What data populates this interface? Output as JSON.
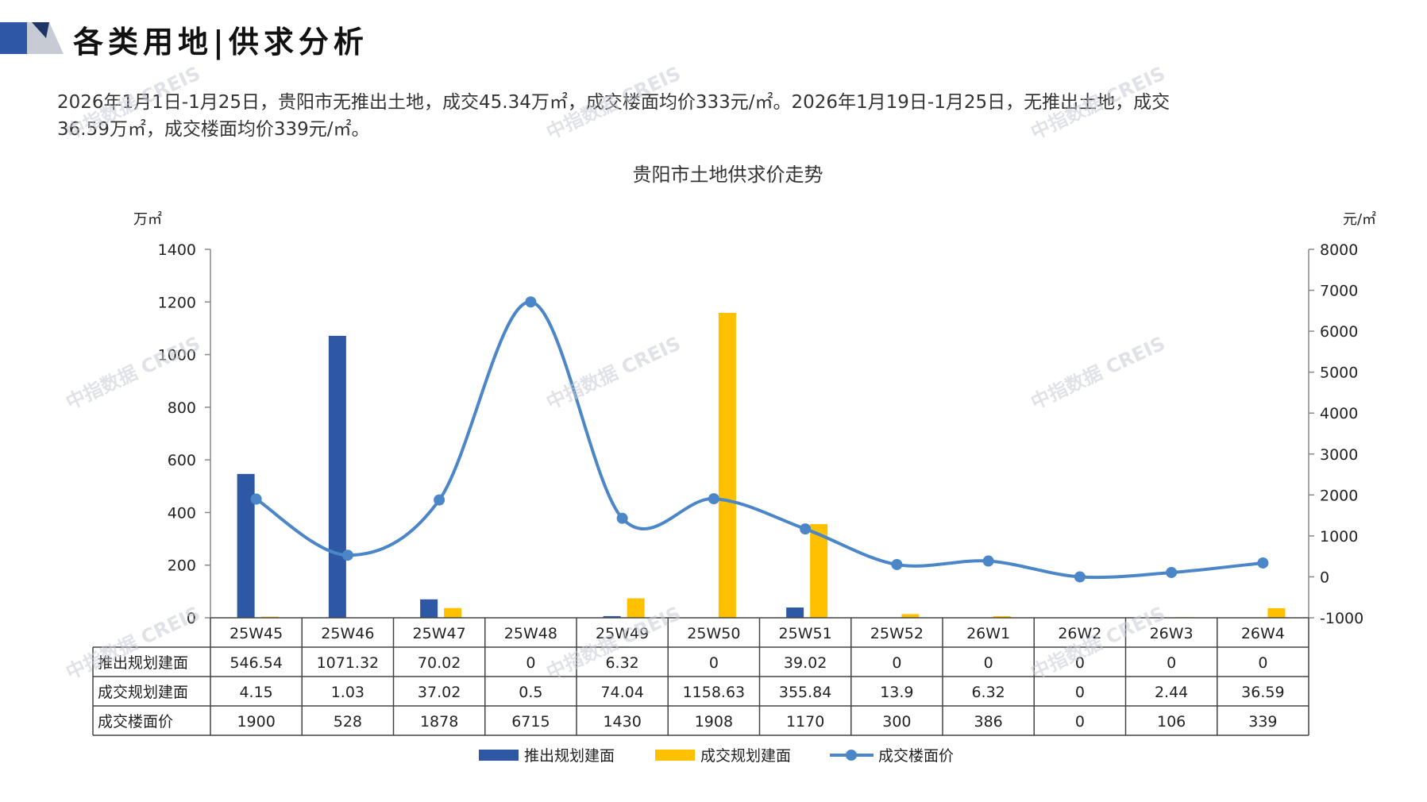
{
  "page": {
    "title": "各类用地|供求分析",
    "summary_line1": "2026年1月1日-1月25日，贵阳市无推出土地，成交45.34万㎡，成交楼面均价333元/㎡。2026年1月19日-1月25日，无推出土地，成交",
    "summary_line2": "36.59万㎡，成交楼面均价339元/㎡。",
    "watermark": "中指数据 CREIS"
  },
  "colors": {
    "supply": "#2E58A6",
    "deal": "#FFC000",
    "price": "#4A86C8",
    "grid": "#444444"
  },
  "chart_data": {
    "type": "bar",
    "title": "贵阳市土地供求价走势",
    "ylabel_left": "万㎡",
    "ylabel_right": "元/㎡",
    "ylim_left": [
      0,
      1400
    ],
    "yticks_left": [
      "0",
      "200",
      "400",
      "600",
      "800",
      "1000",
      "1200",
      "1400"
    ],
    "ylim_right": [
      -1000,
      8000
    ],
    "yticks_right": [
      "-1000",
      "0",
      "1000",
      "2000",
      "3000",
      "4000",
      "5000",
      "6000",
      "7000",
      "8000"
    ],
    "categories": [
      "25W45",
      "25W46",
      "25W47",
      "25W48",
      "25W49",
      "25W50",
      "25W51",
      "25W52",
      "26W1",
      "26W2",
      "26W3",
      "26W4"
    ],
    "series": [
      {
        "name": "推出规划建面",
        "type": "bar",
        "axis": "left",
        "values": [
          546.54,
          1071.32,
          70.02,
          0,
          6.32,
          0,
          39.02,
          0,
          0,
          0,
          0,
          0
        ],
        "labels": [
          "546.54",
          "1071.32",
          "70.02",
          "0",
          "6.32",
          "0",
          "39.02",
          "0",
          "0",
          "0",
          "0",
          "0"
        ]
      },
      {
        "name": "成交规划建面",
        "type": "bar",
        "axis": "left",
        "values": [
          4.15,
          1.03,
          37.02,
          0.5,
          74.04,
          1158.63,
          355.84,
          13.9,
          6.32,
          0,
          2.44,
          36.59
        ],
        "labels": [
          "4.15",
          "1.03",
          "37.02",
          "0.5",
          "74.04",
          "1158.63",
          "355.84",
          "13.9",
          "6.32",
          "0",
          "2.44",
          "36.59"
        ]
      },
      {
        "name": "成交楼面价",
        "type": "line",
        "axis": "right",
        "values": [
          1900,
          528,
          1878,
          6715,
          1430,
          1908,
          1170,
          300,
          386,
          0,
          106,
          339
        ],
        "labels": [
          "1900",
          "528",
          "1878",
          "6715",
          "1430",
          "1908",
          "1170",
          "300",
          "386",
          "0",
          "106",
          "339"
        ]
      }
    ],
    "legend": "bottom",
    "table": true
  }
}
